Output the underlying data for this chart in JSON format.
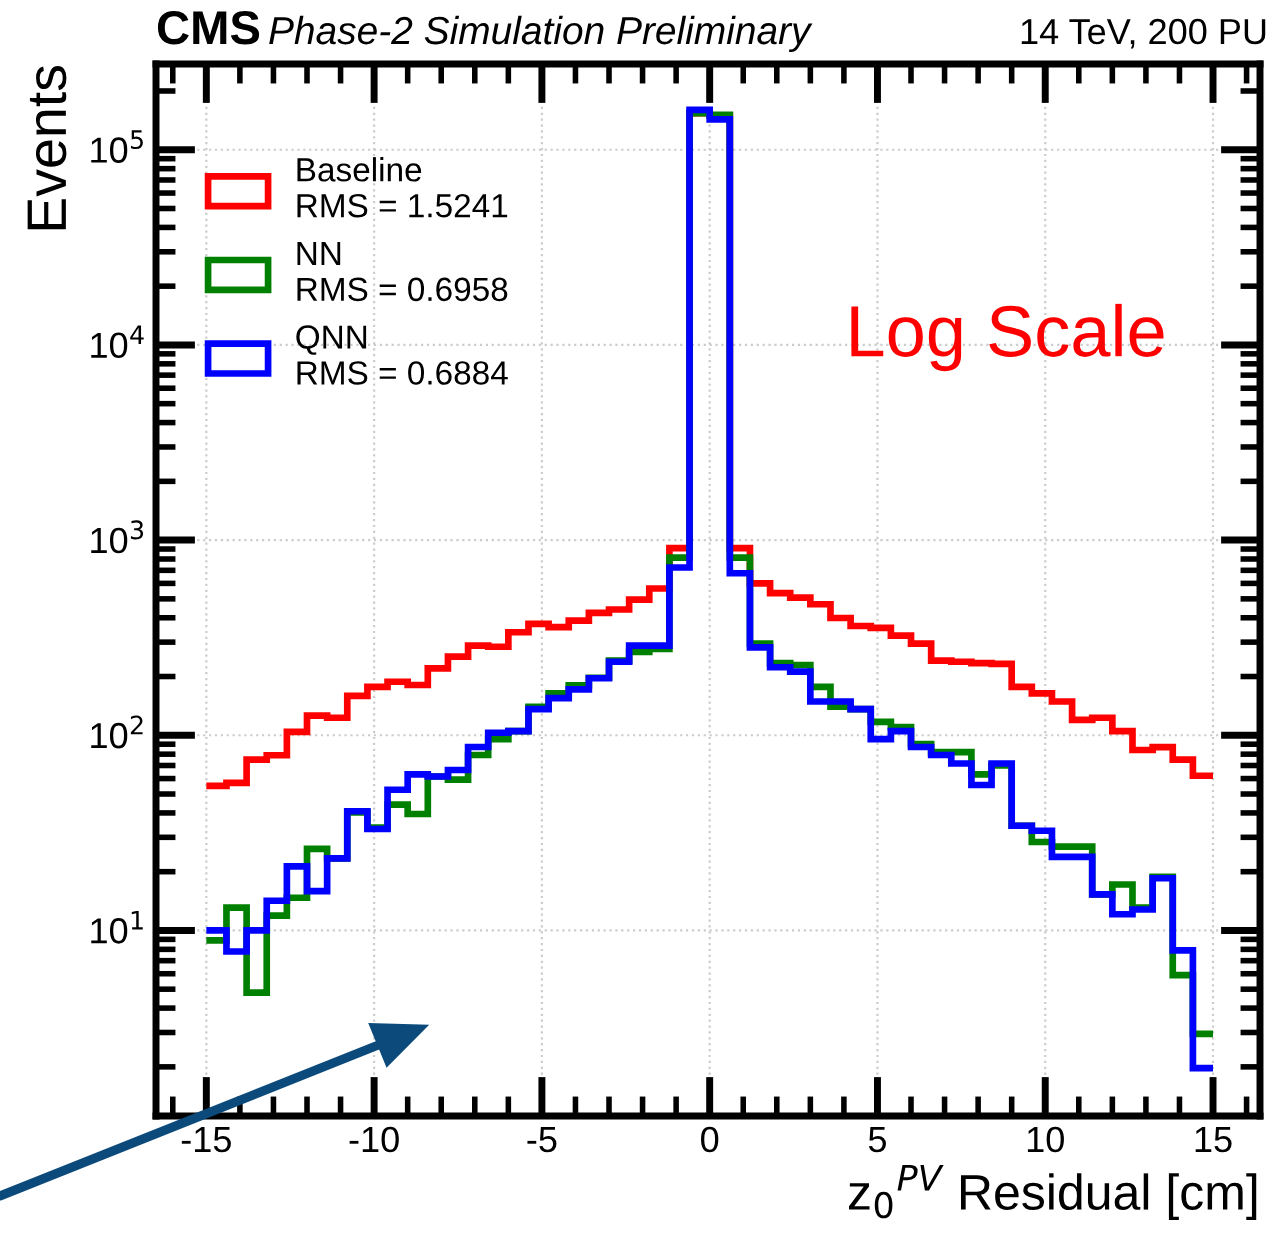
{
  "chart_data": {
    "type": "histogram",
    "title": "CMS",
    "subtitle": "Phase-2 Simulation Preliminary",
    "xlabel": "z$_{0}$$^{PV}$ Residual [cm]",
    "ylabel": "Events",
    "annotations": [
      "14 TeV, 200 PU",
      "Log Scale"
    ],
    "bins": [
      -15,
      -14.4,
      -13.8,
      -13.2,
      -12.6,
      -12,
      -11.4,
      -10.8,
      -10.2,
      -9.6,
      -9,
      -8.4,
      -7.8,
      -7.2,
      -6.6,
      -6,
      -5.4,
      -4.8,
      -4.2,
      -3.6,
      -3,
      -2.4,
      -1.8,
      -1.2,
      -0.6,
      0,
      0.6,
      1.2,
      1.8,
      2.4,
      3,
      3.6,
      4.2,
      4.8,
      5.4,
      6,
      6.6,
      7.2,
      7.8,
      8.4,
      9,
      9.6,
      10.2,
      10.8,
      11.4,
      12,
      12.6,
      13.2,
      13.8,
      14.4,
      15
    ],
    "series": [
      {
        "name": "Baseline\nRMS = 1.5241",
        "color": "#ff0000",
        "values": [
          55,
          57,
          75,
          79,
          104,
          126,
          123,
          159,
          177,
          188,
          181,
          220,
          253,
          288,
          284,
          337,
          372,
          358,
          387,
          424,
          441,
          495,
          565,
          910,
          154000,
          150000,
          910,
          600,
          535,
          507,
          469,
          399,
          363,
          355,
          324,
          295,
          241,
          238,
          234,
          232,
          177,
          164,
          149,
          120,
          123,
          105,
          84,
          87,
          75,
          62
        ]
      },
      {
        "name": "NN\nRMS = 0.6958",
        "color": "#008000",
        "values": [
          8.9,
          13.1,
          4.8,
          11.9,
          14.7,
          26.2,
          23.4,
          40.2,
          33.6,
          44.1,
          39.5,
          61.5,
          59.2,
          79.2,
          95.5,
          105,
          140,
          164,
          180,
          197,
          241,
          267,
          277,
          813,
          154000,
          151000,
          813,
          295,
          234,
          229,
          177,
          140,
          136,
          117,
          110,
          90,
          82,
          82,
          63,
          70,
          34.4,
          28.4,
          26.9,
          26.9,
          15.3,
          17.2,
          13.1,
          18.8,
          5.9,
          2.95
        ]
      },
      {
        "name": "QNN\nRMS = 0.6884",
        "color": "#0000ff",
        "values": [
          10,
          7.8,
          10,
          14.2,
          21.3,
          15.9,
          23.4,
          40.8,
          33.1,
          52.6,
          63,
          61.5,
          66.4,
          87.1,
          103,
          105,
          136,
          155,
          172,
          196,
          238,
          288,
          288,
          724,
          160000,
          143000,
          676,
          282,
          223,
          212,
          149,
          149,
          136,
          95.5,
          105,
          87.1,
          79.2,
          71.7,
          55.6,
          71.7,
          34.4,
          32.4,
          23.8,
          23.8,
          15.3,
          12.1,
          12.8,
          18.5,
          7.9,
          1.97
        ]
      }
    ],
    "xlim": [
      -16.5,
      16.4
    ],
    "ylim": [
      1.12,
      275000
    ],
    "log": "y",
    "xticks": [
      -15,
      -10,
      -5,
      0,
      5,
      10,
      15
    ],
    "yticks": [
      {
        "value": 10,
        "label": "10$^{1}$"
      },
      {
        "value": 100,
        "label": "10$^{2}$"
      },
      {
        "value": 1000,
        "label": "10$^{3}$"
      },
      {
        "value": 10000,
        "label": "10$^{4}$"
      },
      {
        "value": 100000,
        "label": "10$^{5}$"
      }
    ],
    "grid": true,
    "legend": "top left"
  }
}
